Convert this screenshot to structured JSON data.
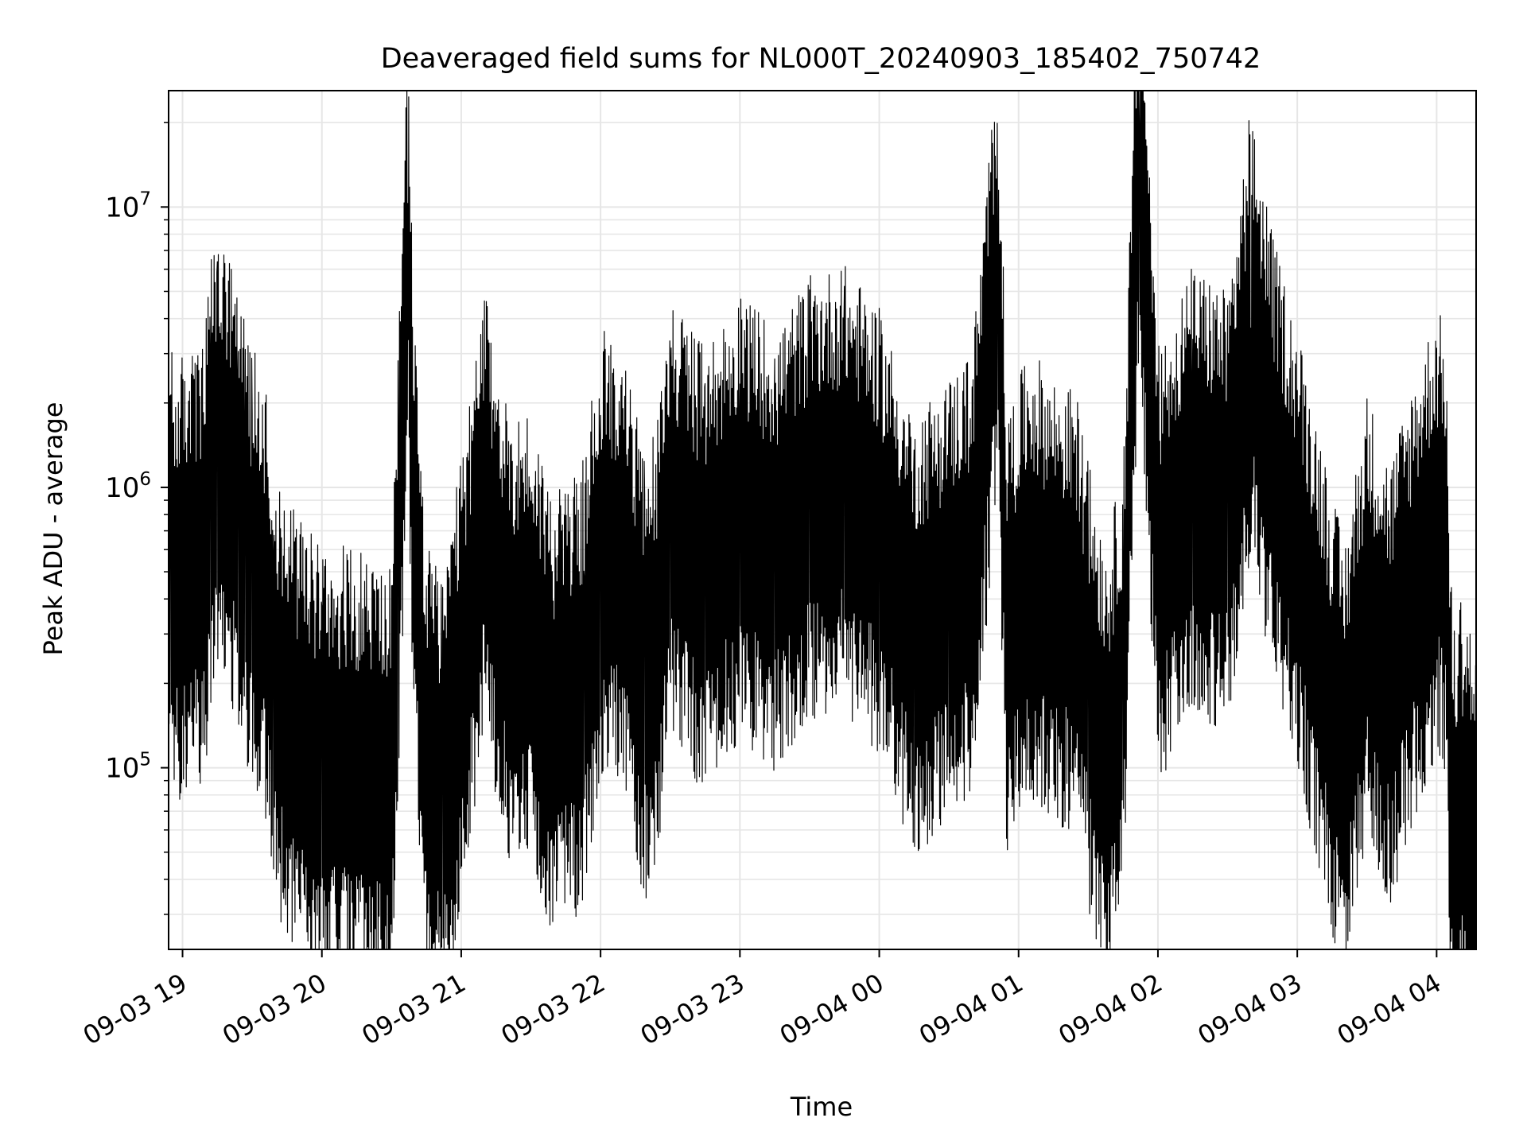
{
  "chart_data": {
    "type": "line",
    "title": "Deaveraged field sums for NL000T_20240903_185402_750742",
    "xlabel": "Time",
    "ylabel": "Peak ADU - average",
    "y_scale": "log",
    "ylim": [
      22500,
      26000000
    ],
    "xlim": [
      "2024-09-03 18:54",
      "2024-09-04 04:17"
    ],
    "grid": true,
    "line_color": "#000000",
    "grid_color": "#e6e6e6",
    "x_ticks": [
      "2024-09-03 19:00",
      "2024-09-03 20:00",
      "2024-09-03 21:00",
      "2024-09-03 22:00",
      "2024-09-03 23:00",
      "2024-09-04 00:00",
      "2024-09-04 01:00",
      "2024-09-04 02:00",
      "2024-09-04 03:00",
      "2024-09-04 04:00"
    ],
    "x_tick_labels": [
      "09-03 19",
      "09-03 20",
      "09-03 21",
      "09-03 22",
      "09-03 23",
      "09-04 00",
      "09-04 01",
      "09-04 02",
      "09-04 03",
      "09-04 04"
    ],
    "y_ticks": [
      100000,
      1000000,
      10000000
    ],
    "y_tick_labels": [
      {
        "base": "10",
        "exp": "5"
      },
      {
        "base": "10",
        "exp": "6"
      },
      {
        "base": "10",
        "exp": "7"
      }
    ],
    "series": [
      {
        "x": [
          "2024-09-03 18:54",
          "2024-09-03 18:55",
          "2024-09-03 18:57",
          "2024-09-03 19:03",
          "2024-09-03 19:09",
          "2024-09-03 19:12",
          "2024-09-03 19:15",
          "2024-09-03 19:24",
          "2024-09-03 19:27",
          "2024-09-03 19:30",
          "2024-09-03 19:36",
          "2024-09-03 19:39",
          "2024-09-03 19:45",
          "2024-09-03 19:51",
          "2024-09-03 20:00",
          "2024-09-03 20:10",
          "2024-09-03 20:20",
          "2024-09-03 20:30",
          "2024-09-03 20:33",
          "2024-09-03 20:35",
          "2024-09-03 20:37",
          "2024-09-03 20:39",
          "2024-09-03 20:45",
          "2024-09-03 20:52",
          "2024-09-03 21:00",
          "2024-09-03 21:10",
          "2024-09-03 21:20",
          "2024-09-03 21:30",
          "2024-09-03 21:40",
          "2024-09-03 21:48",
          "2024-09-03 21:53",
          "2024-09-03 22:00",
          "2024-09-03 22:10",
          "2024-09-03 22:19",
          "2024-09-03 22:25",
          "2024-09-03 22:30",
          "2024-09-03 22:45",
          "2024-09-03 23:00",
          "2024-09-03 23:15",
          "2024-09-03 23:30",
          "2024-09-03 23:45",
          "2024-09-04 00:00",
          "2024-09-04 00:15",
          "2024-09-04 00:30",
          "2024-09-04 00:40",
          "2024-09-04 00:51",
          "2024-09-04 00:55",
          "2024-09-04 01:05",
          "2024-09-04 01:15",
          "2024-09-04 01:25",
          "2024-09-04 01:30",
          "2024-09-04 01:38",
          "2024-09-04 01:45",
          "2024-09-04 01:52",
          "2024-09-04 02:00",
          "2024-09-04 02:15",
          "2024-09-04 02:30",
          "2024-09-04 02:40",
          "2024-09-04 02:50",
          "2024-09-04 03:00",
          "2024-09-04 03:10",
          "2024-09-04 03:20",
          "2024-09-04 03:30",
          "2024-09-04 03:40",
          "2024-09-04 03:50",
          "2024-09-04 04:00",
          "2024-09-04 04:04",
          "2024-09-04 04:06",
          "2024-09-04 04:08",
          "2024-09-04 04:10",
          "2024-09-04 04:14",
          "2024-09-04 04:17"
        ],
        "values": [
          550000,
          500000,
          450000,
          510000,
          500000,
          1000000,
          1400000,
          800000,
          650000,
          500000,
          400000,
          200000,
          150000,
          120000,
          100000,
          100000,
          95000,
          80000,
          600000,
          1800000,
          10300000,
          1000000,
          100000,
          80000,
          200000,
          800000,
          300000,
          300000,
          150000,
          180000,
          200000,
          600000,
          500000,
          200000,
          300000,
          800000,
          500000,
          800000,
          600000,
          900000,
          1000000,
          700000,
          300000,
          400000,
          500000,
          5800000,
          300000,
          500000,
          400000,
          350000,
          200000,
          100000,
          200000,
          19000000,
          500000,
          1000000,
          800000,
          3700000,
          1200000,
          600000,
          250000,
          100000,
          350000,
          200000,
          400000,
          700000,
          600000,
          80000,
          50000,
          70000,
          60000,
          40000
        ]
      }
    ]
  }
}
